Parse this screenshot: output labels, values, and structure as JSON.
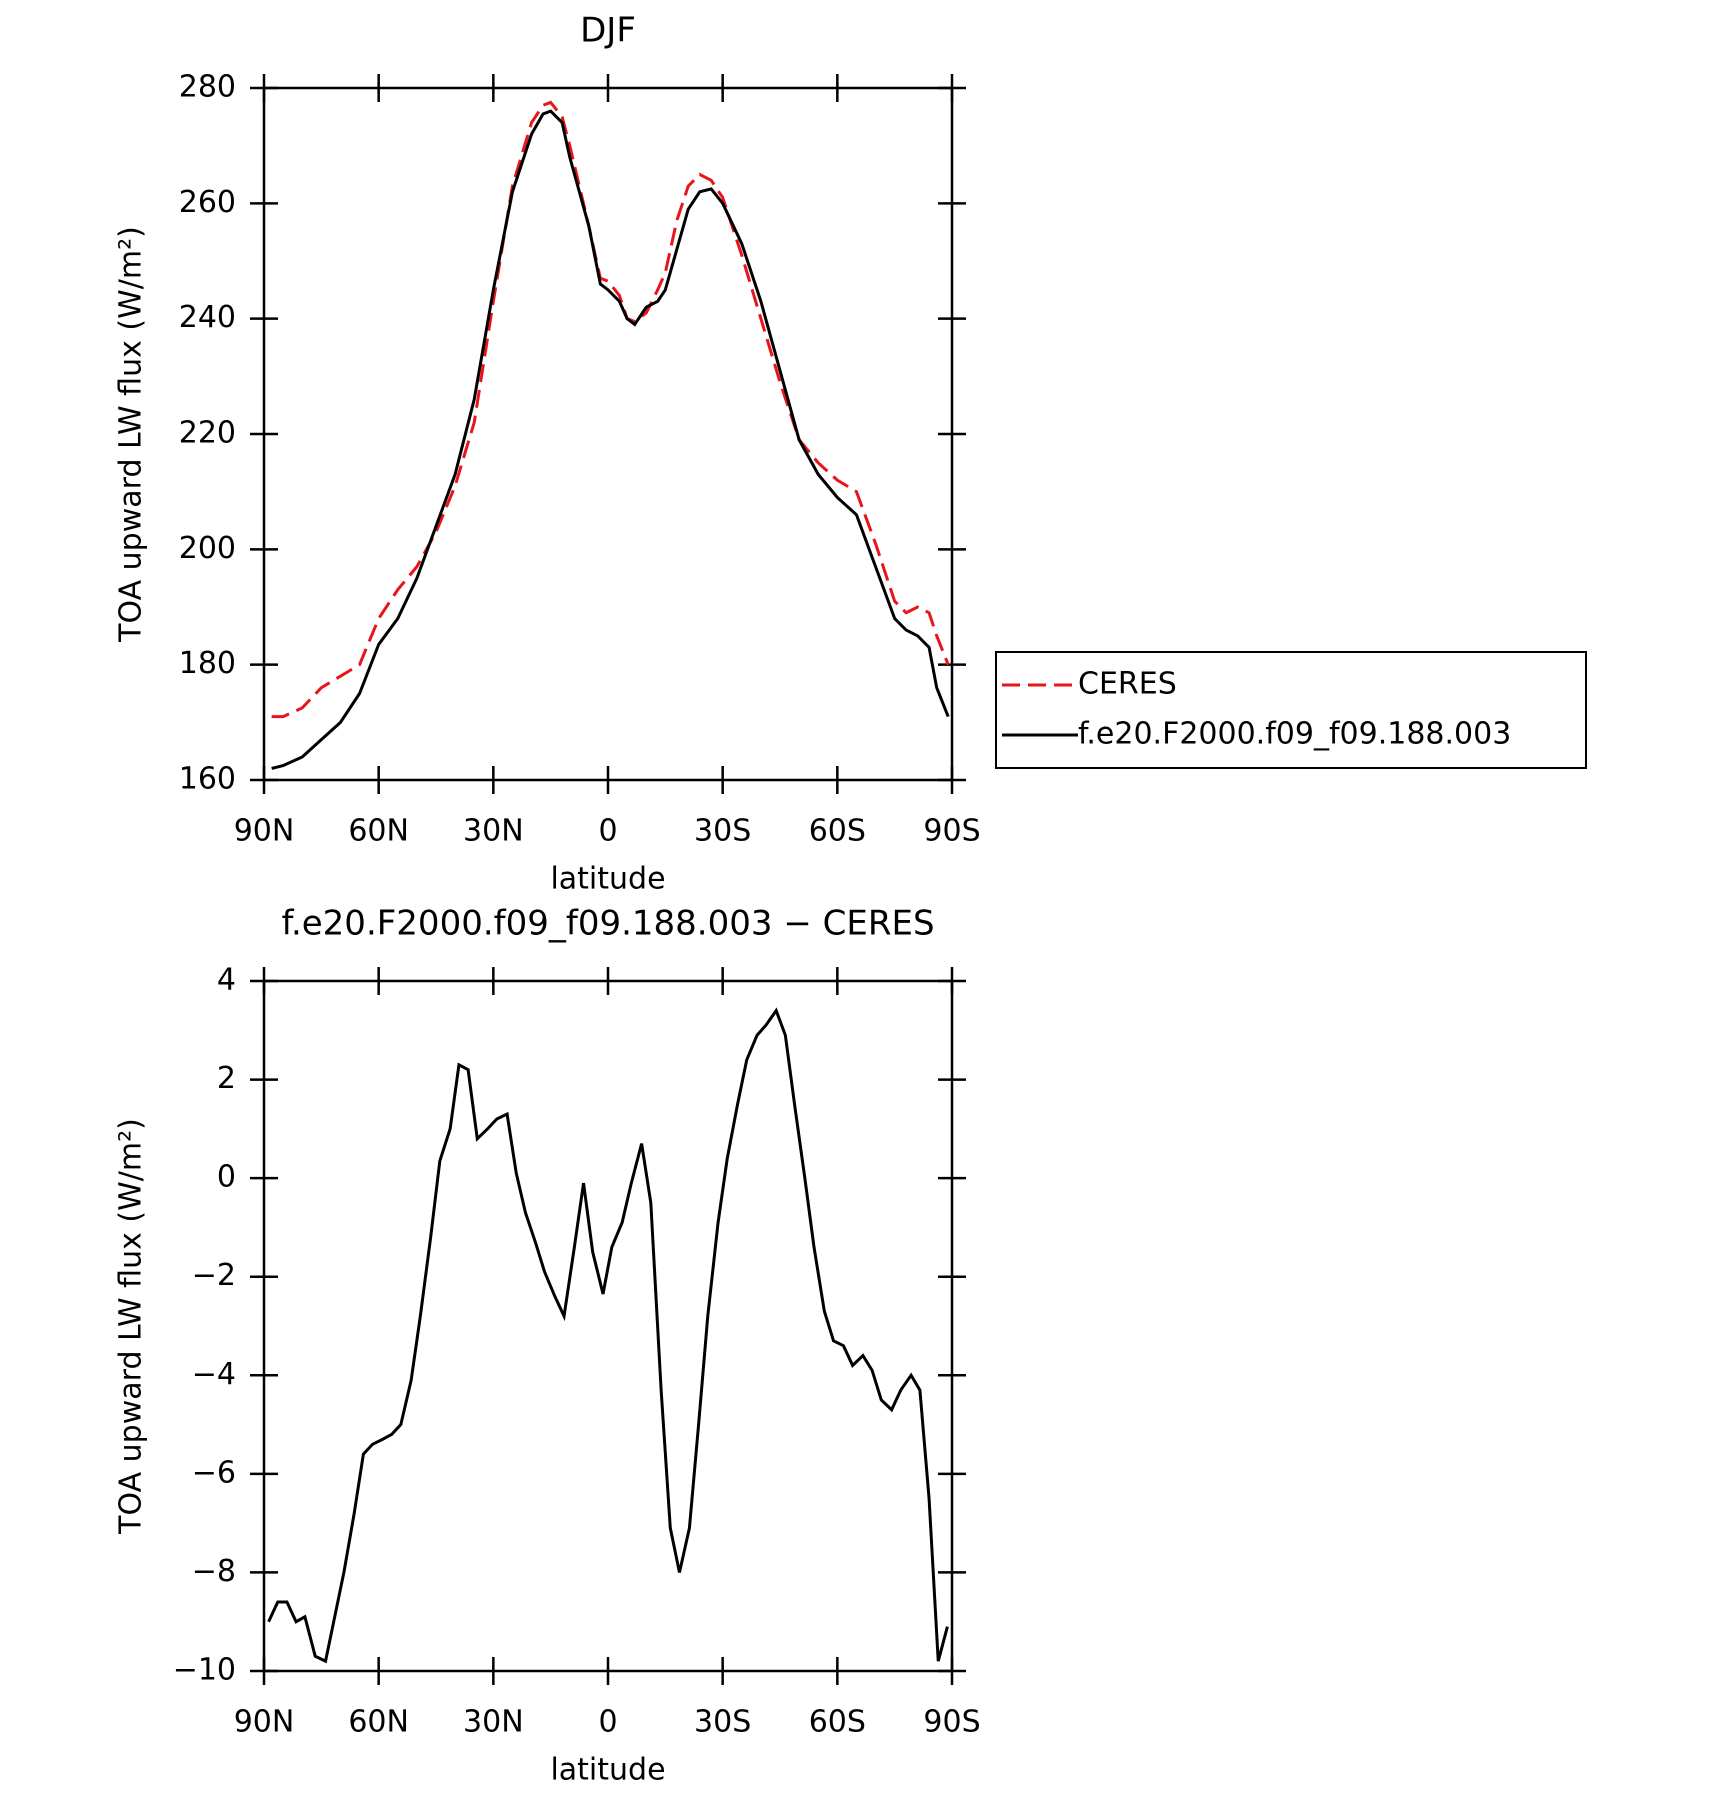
{
  "chart_data": [
    {
      "type": "line",
      "title": "DJF",
      "xlabel": "latitude",
      "ylabel": "TOA upward LW flux (W/m²)",
      "xlim": [
        90,
        -90
      ],
      "xticks": [
        {
          "value": 90,
          "label": "90N"
        },
        {
          "value": 60,
          "label": "60N"
        },
        {
          "value": 30,
          "label": "30N"
        },
        0,
        {
          "value": -30,
          "label": "30S"
        },
        {
          "value": -60,
          "label": "60S"
        },
        {
          "value": -90,
          "label": "90S"
        }
      ],
      "ylim": [
        160,
        280
      ],
      "yticks": [
        160,
        180,
        200,
        220,
        240,
        260,
        280
      ],
      "legend": "right",
      "x": [
        88,
        85,
        80,
        75,
        70,
        65,
        60,
        55,
        50,
        45,
        40,
        35,
        30,
        25,
        20,
        17,
        15,
        12,
        10,
        5,
        2,
        0,
        -3,
        -5,
        -7,
        -10,
        -13,
        -15,
        -18,
        -21,
        -24,
        -27,
        -30,
        -35,
        -40,
        -45,
        -50,
        -55,
        -60,
        -65,
        -70,
        -75,
        -78,
        -81,
        -84,
        -86,
        -89
      ],
      "series": [
        {
          "name": "CERES",
          "color": "#e8161b",
          "line_style": "dashed",
          "values": [
            171,
            171,
            172.5,
            176,
            178,
            180,
            188,
            193,
            197,
            203,
            211,
            222,
            243,
            263,
            274,
            277,
            277.5,
            275,
            270,
            256,
            247,
            246.5,
            244,
            240,
            239.5,
            241,
            245,
            248,
            257,
            263,
            265,
            264,
            261,
            251,
            240,
            229,
            219,
            215,
            212,
            210,
            201,
            191,
            189,
            190,
            189,
            185,
            180
          ]
        },
        {
          "name": "f.e20.F2000.f09_f09.188.003",
          "color": "#000000",
          "line_style": "solid",
          "values": [
            162,
            162.5,
            164,
            167,
            170,
            175,
            183.5,
            188,
            195,
            204,
            213,
            226,
            245,
            262,
            272,
            275.5,
            276,
            274,
            268,
            256,
            246,
            245,
            243,
            240,
            239,
            242,
            243,
            245,
            252,
            259,
            262,
            262.5,
            260,
            253,
            243,
            231,
            219,
            213,
            209,
            206,
            197,
            188,
            186,
            185,
            183,
            176,
            171
          ]
        }
      ]
    },
    {
      "type": "line",
      "title": "f.e20.F2000.f09_f09.188.003 − CERES",
      "xlabel": "latitude",
      "ylabel": "TOA upward LW flux (W/m²)",
      "xlim": [
        90,
        -90
      ],
      "xticks": [
        {
          "value": 90,
          "label": "90N"
        },
        {
          "value": 60,
          "label": "60N"
        },
        {
          "value": 30,
          "label": "30N"
        },
        0,
        {
          "value": -30,
          "label": "30S"
        },
        {
          "value": -60,
          "label": "60S"
        },
        {
          "value": -90,
          "label": "90S"
        }
      ],
      "ylim": [
        -10,
        4
      ],
      "yticks": [
        {
          "value": -10,
          "label": "−10"
        },
        {
          "value": -8,
          "label": "−8"
        },
        {
          "value": -6,
          "label": "−6"
        },
        {
          "value": -4,
          "label": "−4"
        },
        {
          "value": -2,
          "label": "−2"
        },
        0,
        2,
        4
      ],
      "x": [
        88.8,
        86.4,
        84,
        81.6,
        79.3,
        76.6,
        73.9,
        71.5,
        69.1,
        66.4,
        64,
        61.6,
        59,
        56.6,
        54.2,
        51.5,
        49.1,
        46.4,
        44,
        41.3,
        39,
        36.6,
        34.2,
        31.5,
        29.1,
        26.4,
        24,
        21.6,
        19,
        16.6,
        13.9,
        11.5,
        8.8,
        6.4,
        4,
        1.3,
        -1,
        -3.7,
        -6.1,
        -8.8,
        -11.2,
        -13.9,
        -16.3,
        -18.7,
        -21.3,
        -23.7,
        -26.1,
        -28.8,
        -31.2,
        -33.9,
        -36.3,
        -39,
        -41.3,
        -44,
        -46.4,
        -48.8,
        -51.5,
        -53.9,
        -56.6,
        -59,
        -61.6,
        -64,
        -66.7,
        -69.1,
        -71.5,
        -74.2,
        -76.6,
        -79.3,
        -81.6,
        -84,
        -86.4,
        -88.8
      ],
      "series": [
        {
          "color": "#000000",
          "line_style": "solid",
          "values": [
            -9.0,
            -8.6,
            -8.6,
            -9.0,
            -8.9,
            -9.7,
            -9.8,
            -8.9,
            -8.0,
            -6.8,
            -5.6,
            -5.4,
            -5.3,
            -5.2,
            -5.0,
            -4.1,
            -2.8,
            -1.2,
            0.35,
            1.0,
            2.3,
            2.2,
            0.8,
            1.0,
            1.2,
            1.3,
            0.1,
            -0.7,
            -1.3,
            -1.9,
            -2.4,
            -2.8,
            -1.4,
            -0.1,
            -1.5,
            -2.35,
            -1.4,
            -0.9,
            -0.1,
            0.7,
            -0.5,
            -4.3,
            -7.1,
            -8.0,
            -7.1,
            -5.0,
            -2.8,
            -0.9,
            0.4,
            1.5,
            2.4,
            2.9,
            3.1,
            3.4,
            2.9,
            1.5,
            0.0,
            -1.4,
            -2.7,
            -3.3,
            -3.4,
            -3.8,
            -3.6,
            -3.9,
            -4.5,
            -4.7,
            -4.3,
            -4.0,
            -4.3,
            -6.5,
            -9.8,
            -9.1
          ]
        }
      ]
    }
  ]
}
